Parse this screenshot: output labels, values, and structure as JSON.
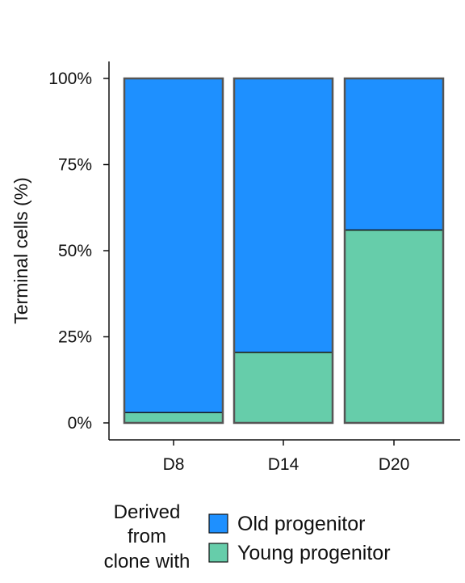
{
  "chart_data": {
    "type": "bar",
    "stacked": true,
    "categories": [
      "D8",
      "D14",
      "D20"
    ],
    "series": [
      {
        "name": "Young progenitor",
        "color": "#66cdaa",
        "values": [
          3,
          20.5,
          56
        ]
      },
      {
        "name": "Old progenitor",
        "color": "#1e90ff",
        "values": [
          97,
          79.5,
          44
        ]
      }
    ],
    "ylabel": "Terminal cells (%)",
    "yticks": [
      "0%",
      "25%",
      "50%",
      "75%",
      "100%"
    ],
    "ylim": [
      0,
      100
    ],
    "legend": {
      "title_lines": [
        "Derived",
        "from",
        "clone with"
      ],
      "entries": [
        "Old progenitor",
        "Young progenitor"
      ],
      "position": "bottom"
    },
    "grid": false
  }
}
